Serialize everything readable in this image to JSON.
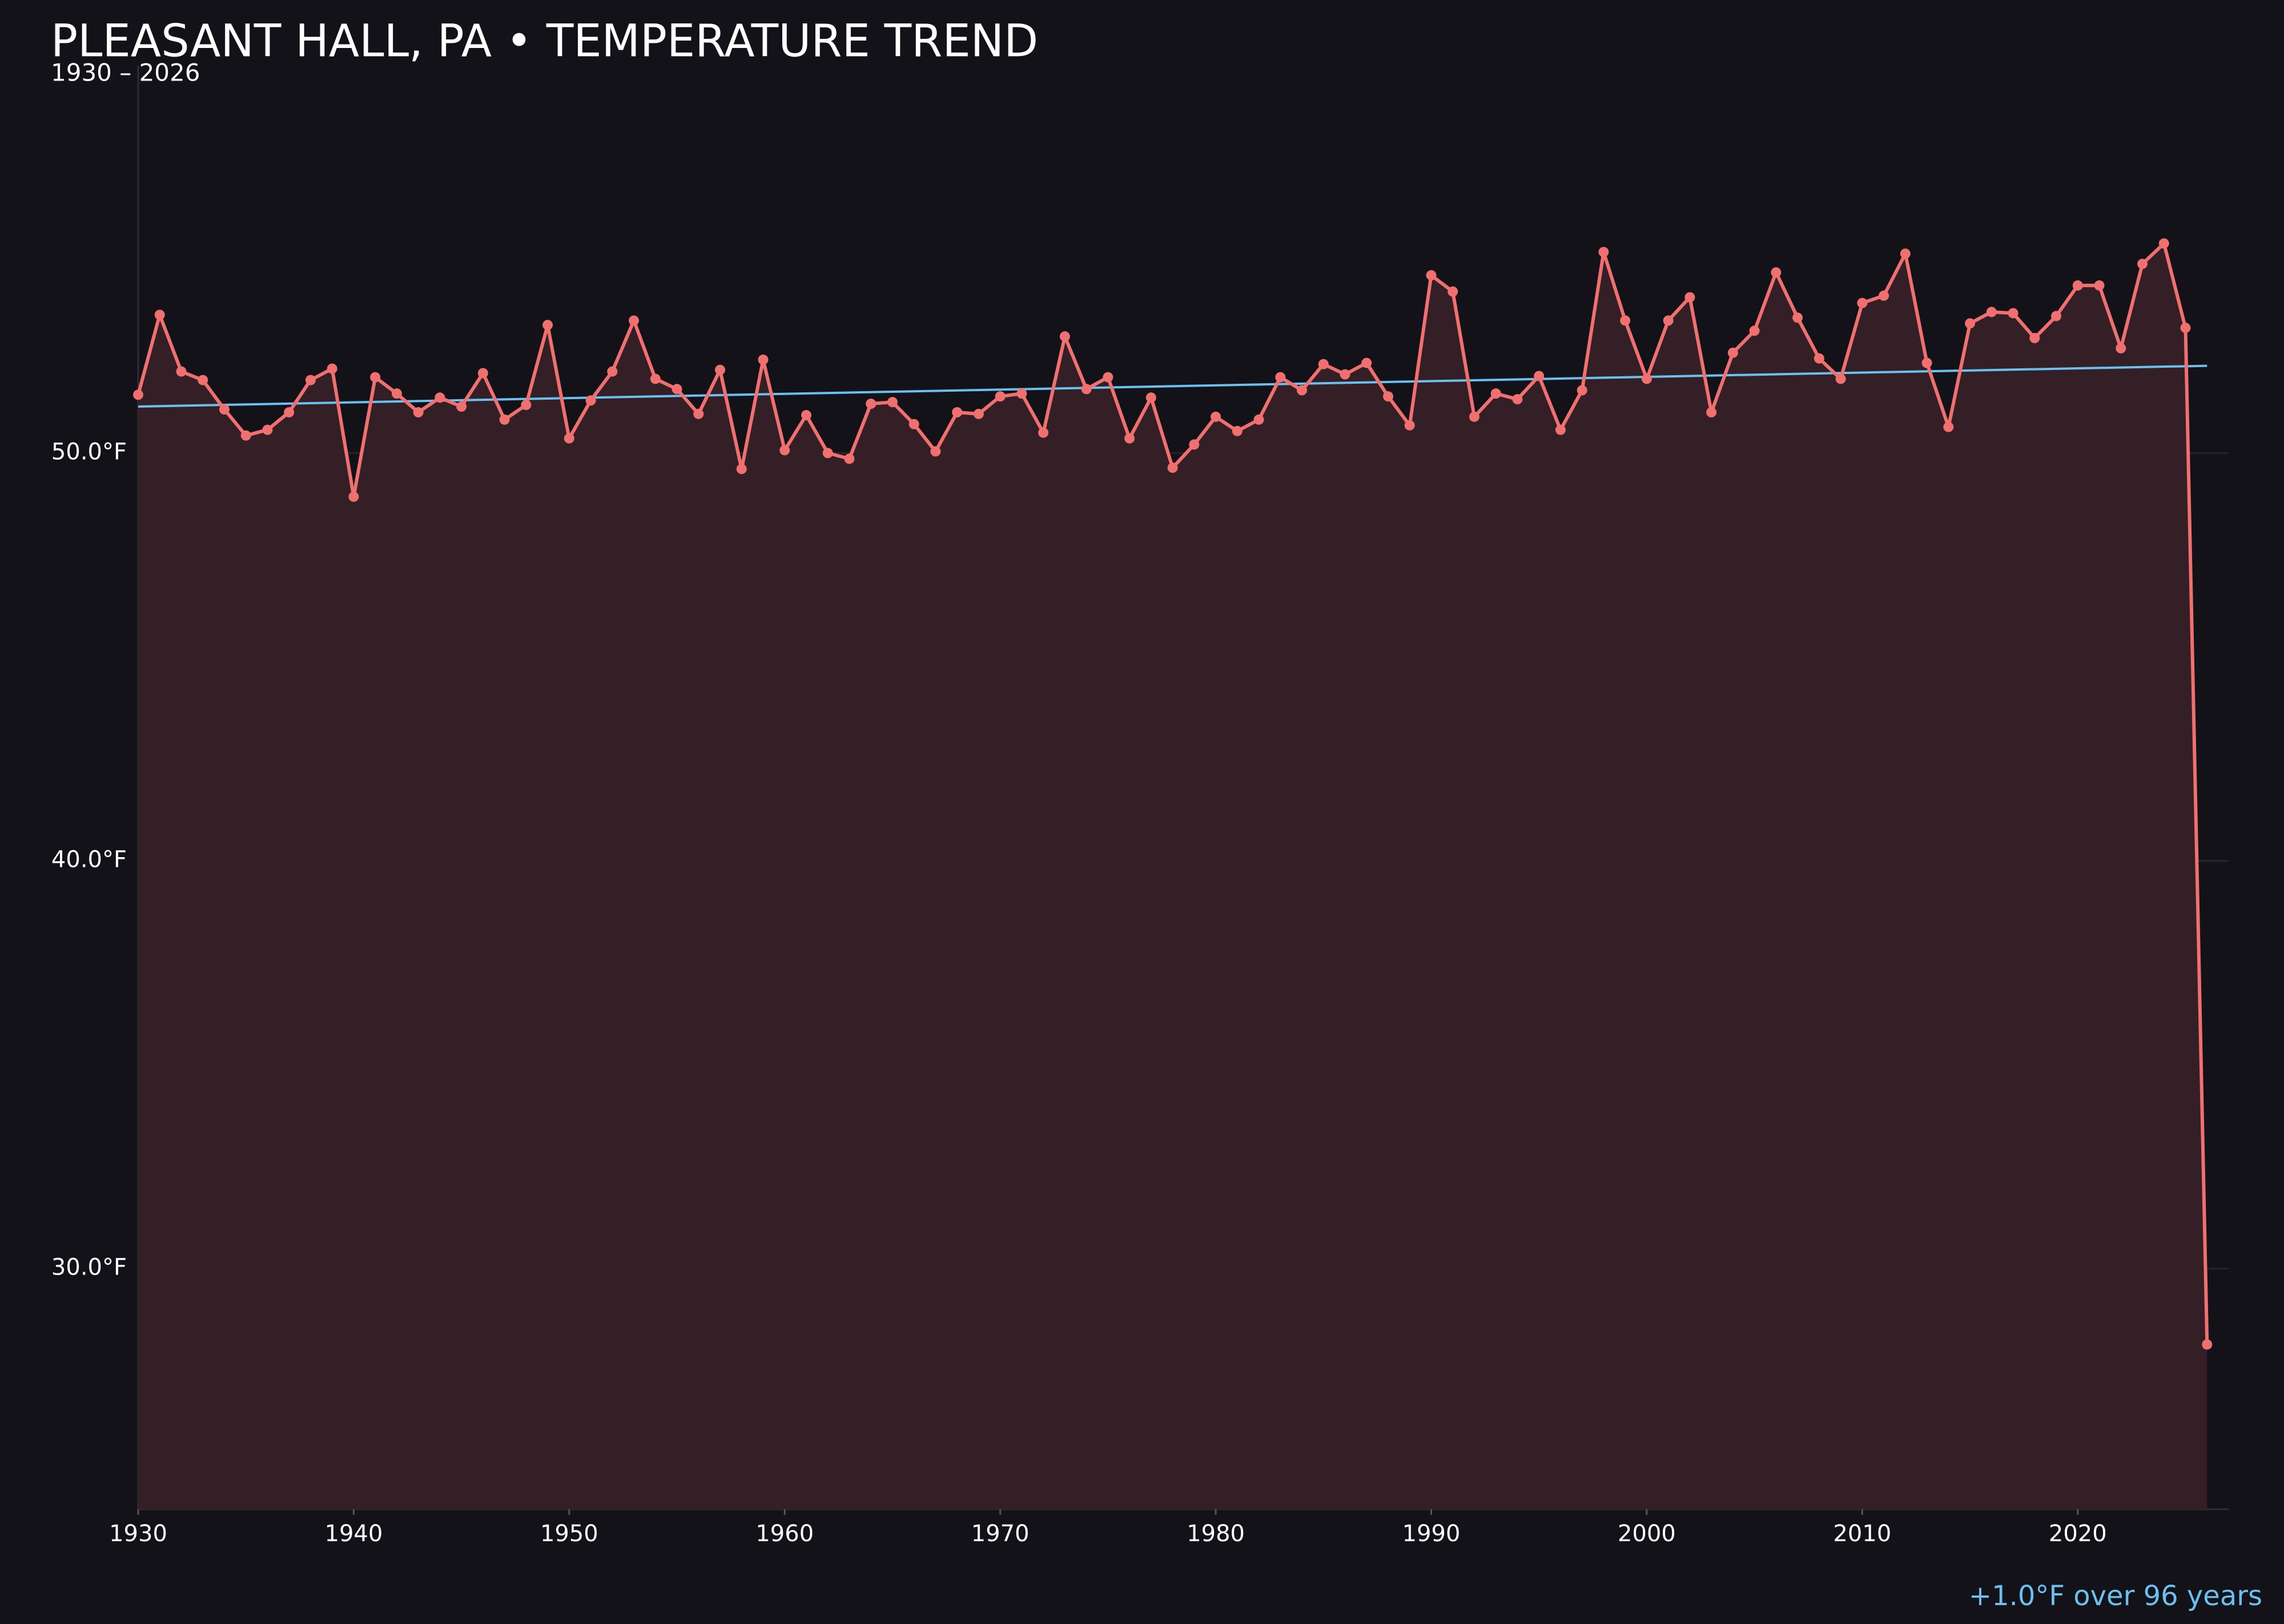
{
  "chart_data": {
    "type": "line",
    "title": "PLEASANT HALL, PA • TEMPERATURE TREND",
    "subtitle": "1930 – 2026",
    "annotation": "+1.0°F over 96 years",
    "x": [
      1930,
      1931,
      1932,
      1933,
      1934,
      1935,
      1936,
      1937,
      1938,
      1939,
      1940,
      1941,
      1942,
      1943,
      1944,
      1945,
      1946,
      1947,
      1948,
      1949,
      1950,
      1951,
      1952,
      1953,
      1954,
      1955,
      1956,
      1957,
      1958,
      1959,
      1960,
      1961,
      1962,
      1963,
      1964,
      1965,
      1966,
      1967,
      1968,
      1969,
      1970,
      1971,
      1972,
      1973,
      1974,
      1975,
      1976,
      1977,
      1978,
      1979,
      1980,
      1981,
      1982,
      1983,
      1984,
      1985,
      1986,
      1987,
      1988,
      1989,
      1990,
      1991,
      1992,
      1993,
      1994,
      1995,
      1996,
      1997,
      1998,
      1999,
      2000,
      2001,
      2002,
      2003,
      2004,
      2005,
      2006,
      2007,
      2008,
      2009,
      2010,
      2011,
      2012,
      2013,
      2014,
      2015,
      2016,
      2017,
      2018,
      2019,
      2020,
      2021,
      2022,
      2023,
      2024,
      2025,
      2026
    ],
    "series": [
      {
        "color": "#f07070",
        "fill": "#341f26",
        "values": [
          51.43,
          53.39,
          52.0,
          51.79,
          51.07,
          50.43,
          50.57,
          51.0,
          51.79,
          52.07,
          48.93,
          51.86,
          51.46,
          51.0,
          51.36,
          51.14,
          51.96,
          50.82,
          51.18,
          53.14,
          50.36,
          51.29,
          52.0,
          53.25,
          51.82,
          51.57,
          50.96,
          52.04,
          49.61,
          52.29,
          50.07,
          50.93,
          50.0,
          49.86,
          51.21,
          51.25,
          50.71,
          50.04,
          51.0,
          50.96,
          51.39,
          51.46,
          50.5,
          52.86,
          51.57,
          51.86,
          50.36,
          51.36,
          49.64,
          50.21,
          50.89,
          50.54,
          50.82,
          51.86,
          51.54,
          52.18,
          51.93,
          52.21,
          51.39,
          50.68,
          54.36,
          53.96,
          50.89,
          51.46,
          51.32,
          51.89,
          50.57,
          51.54,
          54.93,
          53.25,
          51.82,
          53.25,
          53.82,
          51.0,
          52.46,
          53.0,
          54.43,
          53.32,
          52.32,
          51.82,
          53.68,
          53.86,
          54.89,
          52.21,
          50.64,
          53.18,
          53.46,
          53.43,
          52.82,
          53.36,
          54.11,
          54.11,
          52.57,
          54.64,
          55.14,
          53.07,
          28.14
        ]
      }
    ],
    "trend": {
      "x": [
        1930,
        2026
      ],
      "values": [
        51.14,
        52.14
      ],
      "color": "#6cc0f0"
    },
    "xlim": [
      1930,
      2027
    ],
    "ylim": [
      24.1,
      59.5
    ],
    "xticks": [
      1930,
      1940,
      1950,
      1960,
      1970,
      1980,
      1990,
      2000,
      2010,
      2020
    ],
    "yticks": [
      {
        "value": 30,
        "label": "30.0°F"
      },
      {
        "value": 40,
        "label": "40.0°F"
      },
      {
        "value": 50,
        "label": "50.0°F"
      }
    ],
    "grid": true
  }
}
